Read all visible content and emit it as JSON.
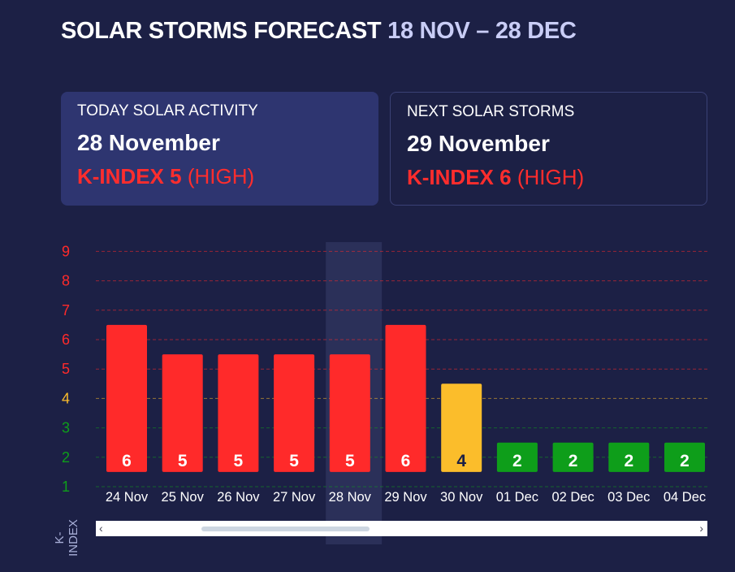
{
  "header": {
    "title": "SOLAR STORMS FORECAST",
    "range": "18 NOV – 28 DEC"
  },
  "cards": [
    {
      "label": "TODAY SOLAR ACTIVITY",
      "date": "28 November",
      "kindex": "K-INDEX 5",
      "level": "(HIGH)"
    },
    {
      "label": "NEXT SOLAR STORMS",
      "date": "29 November",
      "kindex": "K-INDEX 6",
      "level": "(HIGH)"
    }
  ],
  "scroll": {
    "left": "‹",
    "right": "›"
  },
  "colors": {
    "high": "#ff2a2a",
    "moderate": "#fbbd2b",
    "low": "#0e9e1a",
    "highlight": "#2b3059"
  },
  "chart_data": {
    "type": "bar",
    "ylabel": "K-INDEX",
    "ylim": [
      1,
      9
    ],
    "yticks": [
      9,
      8,
      7,
      6,
      5,
      4,
      3,
      2,
      1
    ],
    "grid": true,
    "highlighted_category": "28 Nov",
    "categories": [
      "24 Nov",
      "25 Nov",
      "26 Nov",
      "27 Nov",
      "28 Nov",
      "29 Nov",
      "30 Nov",
      "01 Dec",
      "02 Dec",
      "03 Dec",
      "04 Dec"
    ],
    "values": [
      6,
      5,
      5,
      5,
      5,
      6,
      4,
      2,
      2,
      2,
      2
    ]
  }
}
